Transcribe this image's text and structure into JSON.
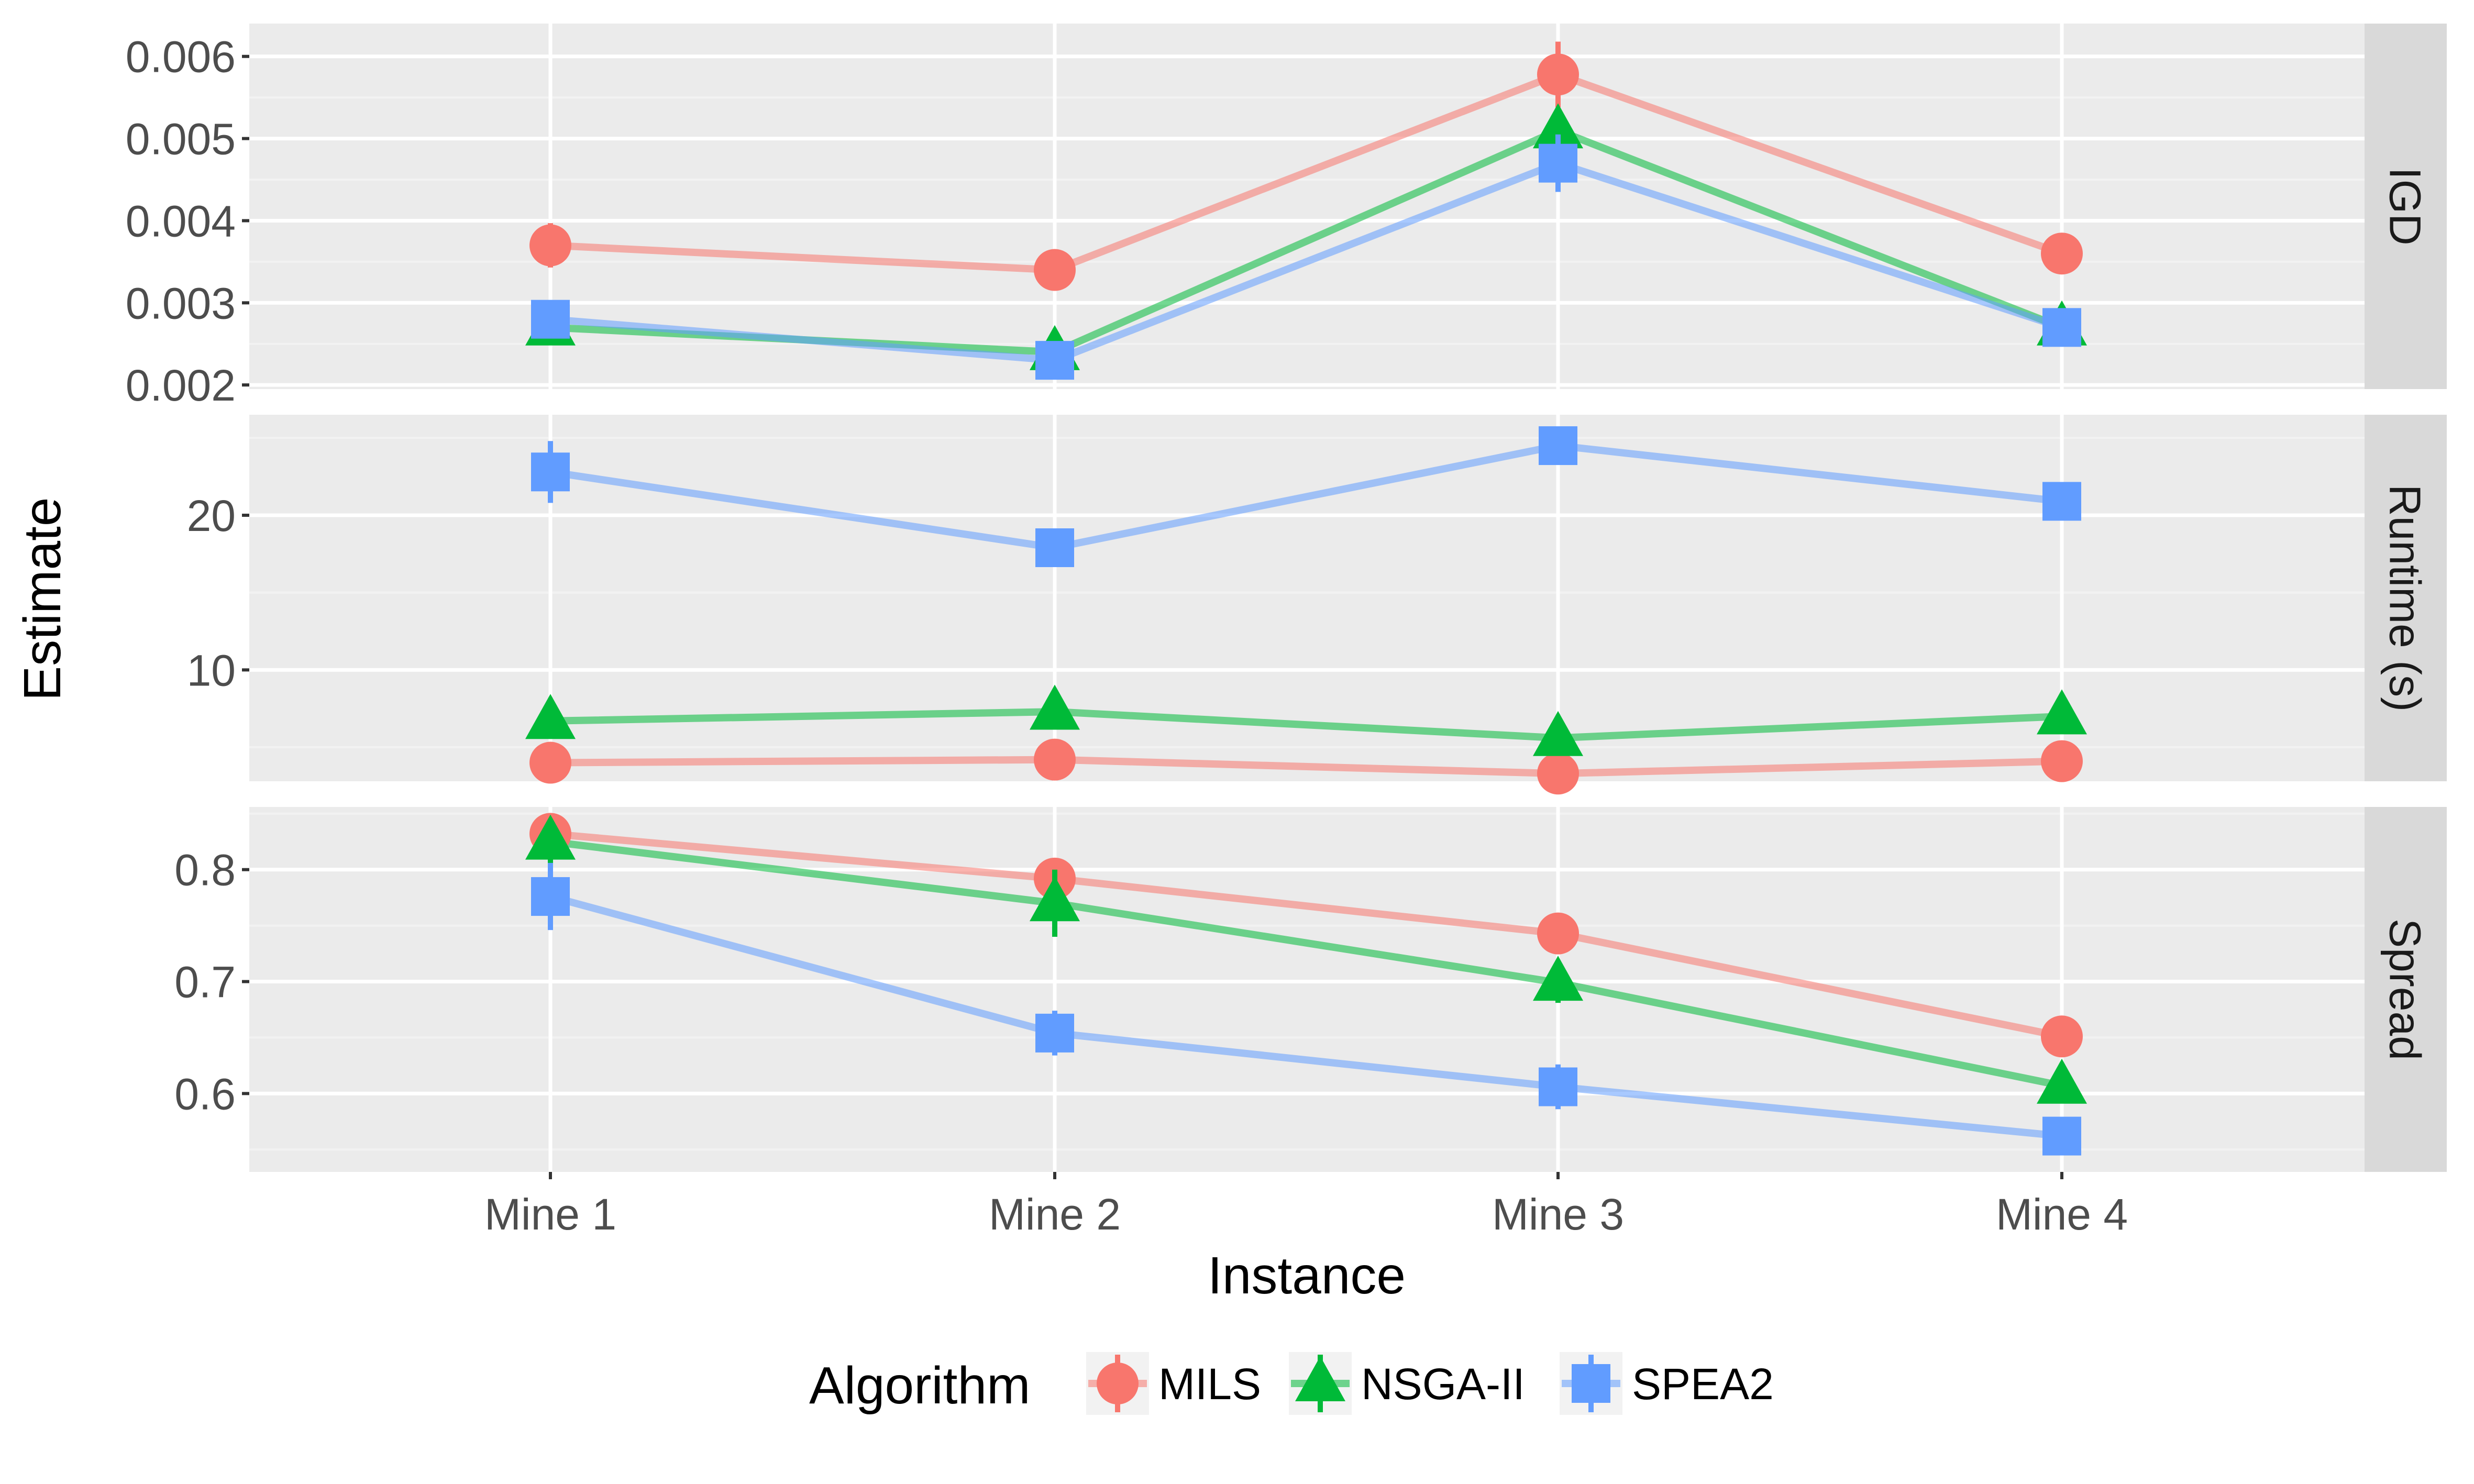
{
  "chart_data": {
    "type": "line",
    "xlabel": "Instance",
    "ylabel": "Estimate",
    "categories": [
      "Mine 1",
      "Mine 2",
      "Mine 3",
      "Mine 4"
    ],
    "legend": {
      "title": "Algorithm",
      "placement": "bottom",
      "entries": [
        {
          "name": "MILS",
          "color": "#F8766D",
          "shape": "circle"
        },
        {
          "name": "NSGA-II",
          "color": "#00BA38",
          "shape": "triangle"
        },
        {
          "name": "SPEA2",
          "color": "#619CFF",
          "shape": "square"
        }
      ]
    },
    "grid": true,
    "facets": [
      {
        "strip": "IGD",
        "ylim": [
          0.00195,
          0.0064
        ],
        "yticks": [
          0.002,
          0.003,
          0.004,
          0.005,
          0.006
        ],
        "ytick_labels": [
          "0.002",
          "0.003",
          "0.004",
          "0.005",
          "0.006"
        ],
        "series": [
          {
            "name": "MILS",
            "values": [
              0.0037,
              0.0034,
              0.00578,
              0.0036
            ],
            "err": [
              0.00027,
              0.00025,
              0.0004,
              0.0001
            ]
          },
          {
            "name": "NSGA-II",
            "values": [
              0.0027,
              0.0024,
              0.0051,
              0.0027
            ],
            "err": [
              0.00017,
              0.00013,
              0.00015,
              0.0001
            ]
          },
          {
            "name": "SPEA2",
            "values": [
              0.0028,
              0.0023,
              0.0047,
              0.0027
            ],
            "err": [
              0.0001,
              0.0001,
              0.00035,
              0.0001
            ]
          }
        ]
      },
      {
        "strip": "Runtime (s)",
        "ylim": [
          2.8,
          26.5
        ],
        "yticks": [
          10,
          20
        ],
        "ytick_labels": [
          "10",
          "20"
        ],
        "series": [
          {
            "name": "MILS",
            "values": [
              4.0,
              4.2,
              3.3,
              4.1
            ],
            "err": [
              0.2,
              0.2,
              0.3,
              0.2
            ]
          },
          {
            "name": "NSGA-II",
            "values": [
              6.7,
              7.3,
              5.6,
              7.0
            ],
            "err": [
              0.3,
              0.3,
              0.3,
              0.3
            ]
          },
          {
            "name": "SPEA2",
            "values": [
              22.8,
              17.9,
              24.5,
              20.9
            ],
            "err": [
              2.0,
              0.4,
              0.6,
              0.4
            ]
          }
        ]
      },
      {
        "strip": "Spread",
        "ylim": [
          0.53,
          0.856
        ],
        "yticks": [
          0.6,
          0.7,
          0.8
        ],
        "ytick_labels": [
          "0.6",
          "0.7",
          "0.8"
        ],
        "series": [
          {
            "name": "MILS",
            "values": [
              0.832,
              0.792,
              0.743,
              0.651
            ],
            "err": [
              0.008,
              0.008,
              0.006,
              0.006
            ]
          },
          {
            "name": "NSGA-II",
            "values": [
              0.825,
              0.77,
              0.699,
              0.607
            ],
            "err": [
              0.02,
              0.03,
              0.018,
              0.006
            ]
          },
          {
            "name": "SPEA2",
            "values": [
              0.776,
              0.654,
              0.606,
              0.562
            ],
            "err": [
              0.03,
              0.02,
              0.02,
              0.006
            ]
          }
        ]
      }
    ]
  }
}
